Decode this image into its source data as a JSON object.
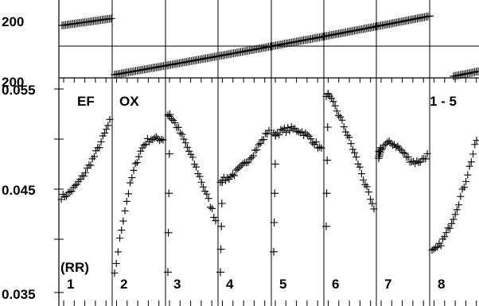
{
  "chart_data": {
    "type": "scatter",
    "annotations": {
      "title_left": "EF",
      "title_mid": "OX",
      "title_right": "1 - 5",
      "rr_label": "(RR)"
    },
    "top_panel": {
      "tick_labels": [
        "200",
        "200"
      ],
      "separators": [
        {
          "left": 15,
          "right": 15,
          "label": ""
        }
      ]
    },
    "main_panel": {
      "y_tick_labels": [
        "0.055",
        "0.045",
        "0.035"
      ],
      "ylim": [
        0.035,
        0.055
      ],
      "beats": [
        "1",
        "2",
        "3",
        "4",
        "5",
        "6",
        "7",
        "8"
      ]
    },
    "series_profile": [
      {
        "beat": "1",
        "start": 0.0444,
        "end": 0.0518,
        "shape": "rise",
        "dip": 0.0444
      },
      {
        "beat": "2",
        "start": 0.0367,
        "end": 0.0501,
        "shape": "rise-plateau",
        "dip": 0.0367
      },
      {
        "beat": "3",
        "start": 0.0525,
        "end": 0.0421,
        "shape": "decline",
        "dip": 0.037
      },
      {
        "beat": "4",
        "start": 0.046,
        "end": 0.051,
        "shape": "rise",
        "dip": 0.037
      },
      {
        "beat": "5",
        "start": 0.0505,
        "end": 0.049,
        "shape": "hump",
        "dip": 0.039
      },
      {
        "beat": "6",
        "start": 0.0545,
        "end": 0.043,
        "shape": "decline",
        "dip": 0.0415
      },
      {
        "beat": "7",
        "start": 0.049,
        "end": 0.0485,
        "shape": "wave",
        "dip": 0.0482
      },
      {
        "beat": "8",
        "start": 0.039,
        "end": 0.05,
        "shape": "rise",
        "dip": 0.039
      }
    ]
  }
}
